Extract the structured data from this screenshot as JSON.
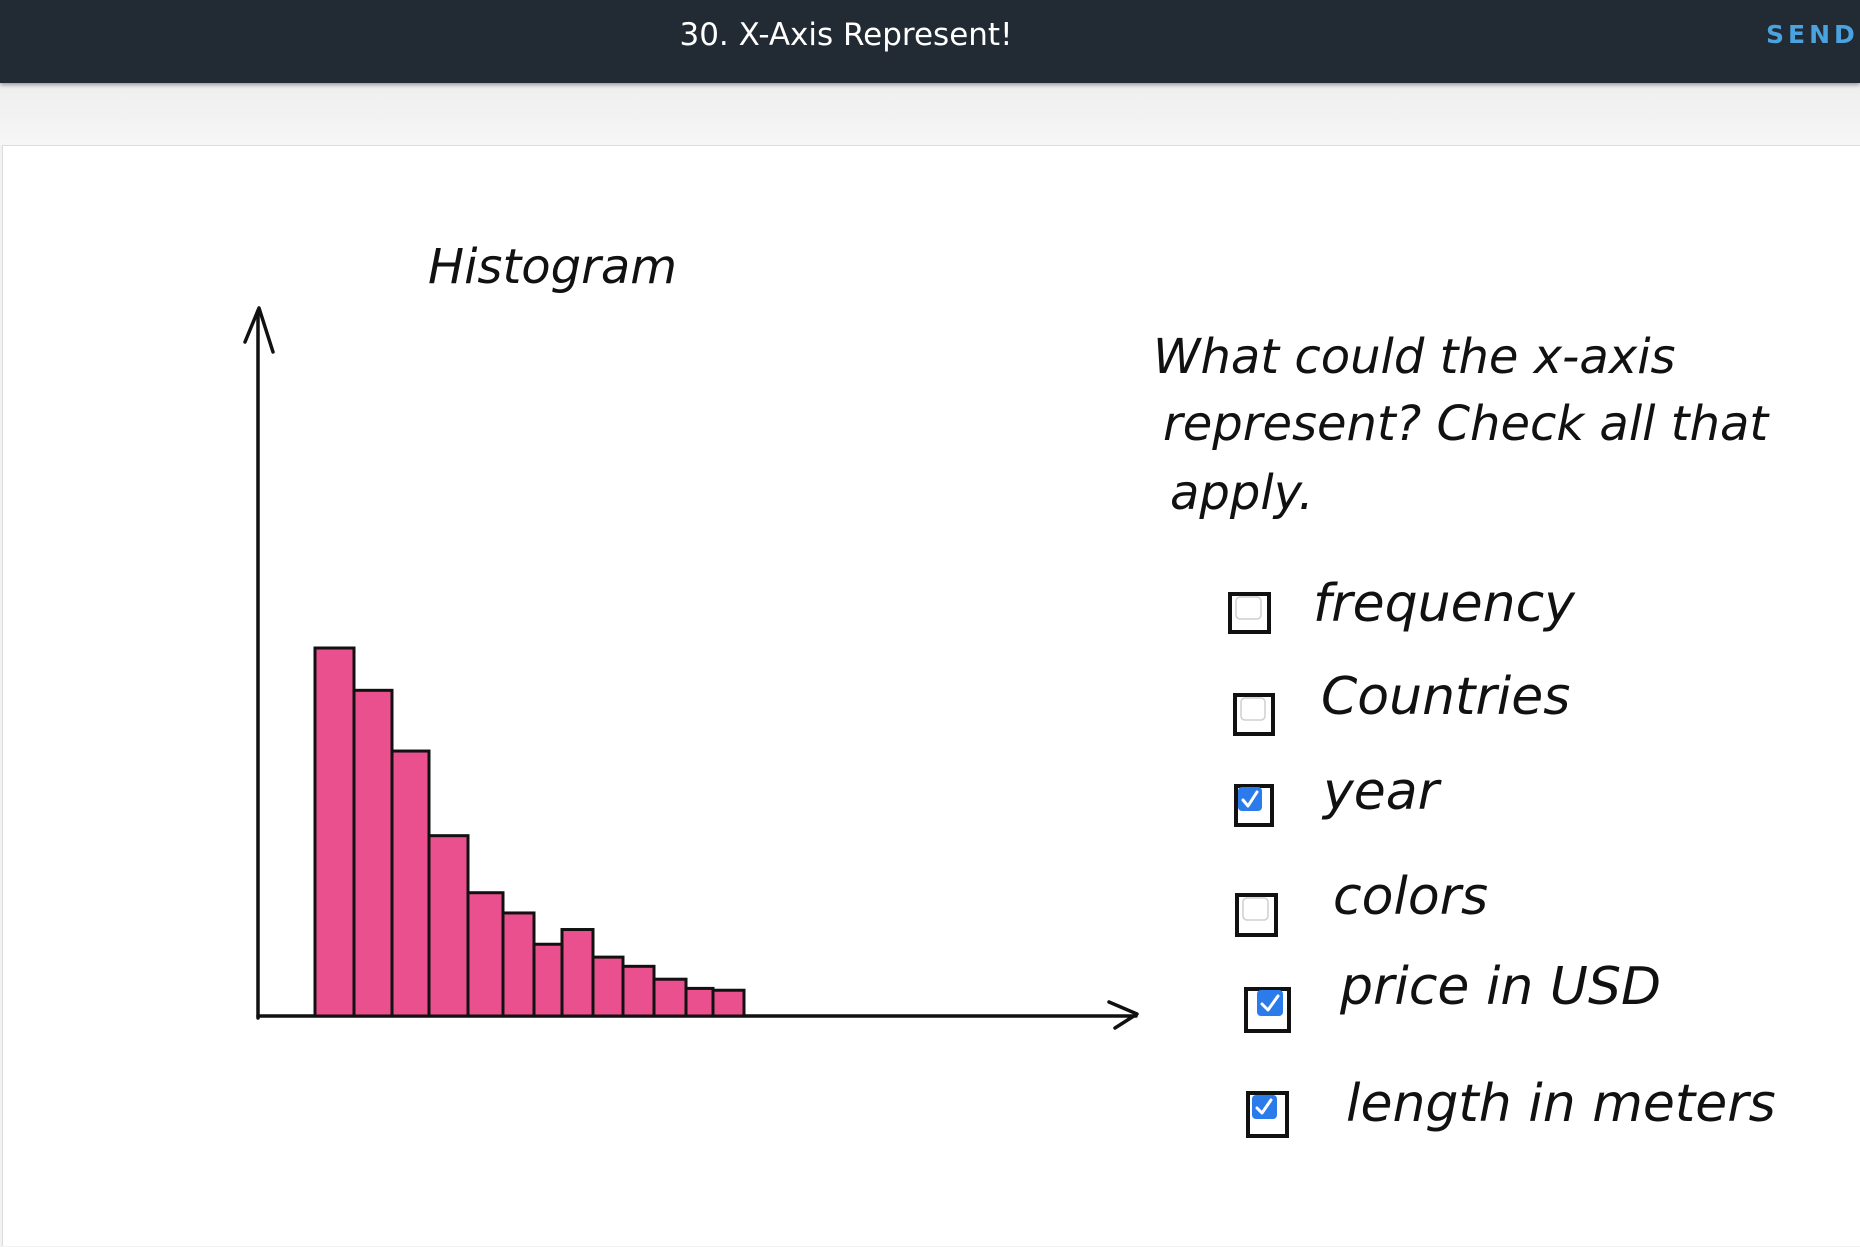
{
  "header": {
    "title": "30. X-Axis Represent!",
    "send_label": "SEND"
  },
  "colors": {
    "topbar": "#222a33",
    "send": "#4aa3df",
    "bar_fill": "#ea4f8e",
    "bar_stroke": "#111111",
    "checkbox_checked": "#2b7bea"
  },
  "question": {
    "lines": [
      "What could the x-axis",
      "represent?  Check all that",
      "apply."
    ],
    "options": [
      {
        "label": "frequency",
        "checked": false
      },
      {
        "label": "Countries",
        "checked": false
      },
      {
        "label": "year",
        "checked": true
      },
      {
        "label": "colors",
        "checked": false
      },
      {
        "label": "price in USD",
        "checked": true
      },
      {
        "label": "length in meters",
        "checked": true
      }
    ]
  },
  "chart_data": {
    "type": "bar",
    "title": "Histogram",
    "xlabel": "",
    "ylabel": "",
    "ylim": [
      0,
      100
    ],
    "grid": false,
    "values": [
      100,
      88.5,
      72,
      49,
      33.5,
      28,
      19.5,
      23.5,
      16,
      13.5,
      10,
      7.5,
      7
    ]
  }
}
